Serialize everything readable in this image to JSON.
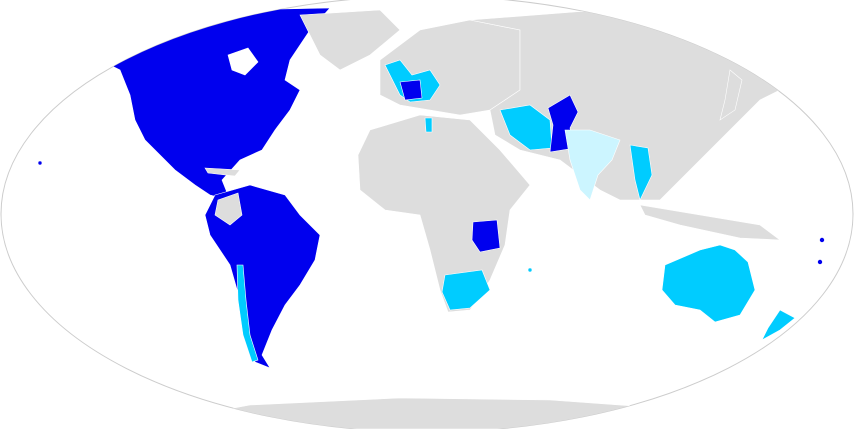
{
  "map": {
    "projection": "robinson",
    "colors": {
      "background": "#ffffff",
      "outline": "#cccccc",
      "land_default": "#dddddd",
      "category_dark": "#0000ee",
      "category_light": "#00ccff",
      "category_pale": "#ccf5ff",
      "borders": "#ffffff"
    }
  }
}
